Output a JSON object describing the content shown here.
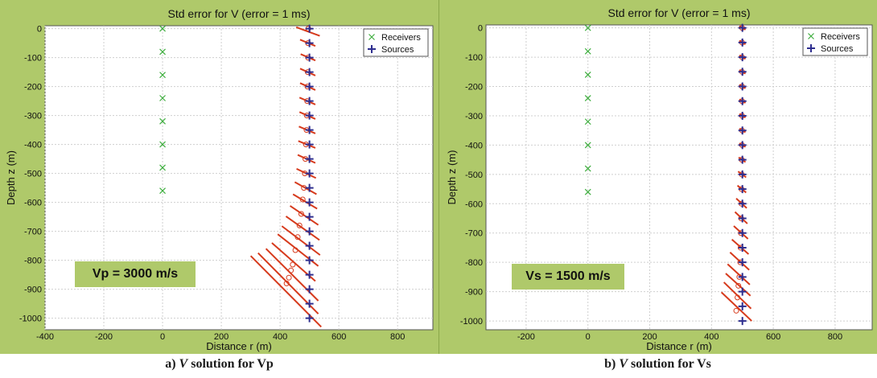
{
  "chart_data": [
    {
      "type": "scatter",
      "title": "Std error for V (error = 1 ms)",
      "xlabel": "Distance r (m)",
      "ylabel": "Depth z (m)",
      "xlim": [
        -400,
        920
      ],
      "ylim": [
        -1040,
        10
      ],
      "xticks": [
        -400,
        -200,
        0,
        200,
        400,
        600,
        800
      ],
      "yticks": [
        0,
        -100,
        -200,
        -300,
        -400,
        -500,
        -600,
        -700,
        -800,
        -900,
        -1000
      ],
      "grid": true,
      "legend_position": "top-right",
      "legend": [
        "Receivers",
        "Sources"
      ],
      "receivers": {
        "x": [
          0,
          0,
          0,
          0,
          0,
          0,
          0,
          0
        ],
        "z": [
          0,
          -80,
          -160,
          -240,
          -320,
          -400,
          -480,
          -560
        ]
      },
      "sources": {
        "x": 500,
        "z": [
          0,
          -50,
          -100,
          -150,
          -200,
          -250,
          -300,
          -350,
          -400,
          -450,
          -500,
          -550,
          -600,
          -650,
          -700,
          -750,
          -800,
          -850,
          -900,
          -950,
          -1000
        ]
      },
      "solutions": [
        {
          "x": 496,
          "z": 0
        },
        {
          "x": 495,
          "z": -50
        },
        {
          "x": 495,
          "z": -100
        },
        {
          "x": 494,
          "z": -150
        },
        {
          "x": 493,
          "z": -200
        },
        {
          "x": 492,
          "z": -250
        },
        {
          "x": 491,
          "z": -300
        },
        {
          "x": 490,
          "z": -350
        },
        {
          "x": 488,
          "z": -400
        },
        {
          "x": 486,
          "z": -450
        },
        {
          "x": 484,
          "z": -500
        },
        {
          "x": 481,
          "z": -550
        },
        {
          "x": 477,
          "z": -590
        },
        {
          "x": 472,
          "z": -640
        },
        {
          "x": 466,
          "z": -680
        },
        {
          "x": 460,
          "z": -720
        },
        {
          "x": 452,
          "z": -765
        },
        {
          "x": 443,
          "z": -815
        },
        {
          "x": 437,
          "z": -835
        },
        {
          "x": 430,
          "z": -860
        },
        {
          "x": 422,
          "z": -880
        }
      ],
      "error_bars": [
        {
          "x1": 455,
          "z1": 5,
          "x2": 535,
          "z2": -25
        },
        {
          "x1": 468,
          "z1": -38,
          "x2": 520,
          "z2": -60
        },
        {
          "x1": 470,
          "z1": -88,
          "x2": 520,
          "z2": -110
        },
        {
          "x1": 468,
          "z1": -138,
          "x2": 520,
          "z2": -162
        },
        {
          "x1": 468,
          "z1": -188,
          "x2": 520,
          "z2": -212
        },
        {
          "x1": 466,
          "z1": -238,
          "x2": 520,
          "z2": -262
        },
        {
          "x1": 466,
          "z1": -288,
          "x2": 520,
          "z2": -312
        },
        {
          "x1": 464,
          "z1": -338,
          "x2": 520,
          "z2": -362
        },
        {
          "x1": 462,
          "z1": -388,
          "x2": 520,
          "z2": -412
        },
        {
          "x1": 460,
          "z1": -436,
          "x2": 520,
          "z2": -464
        },
        {
          "x1": 456,
          "z1": -484,
          "x2": 522,
          "z2": -516
        },
        {
          "x1": 450,
          "z1": -530,
          "x2": 524,
          "z2": -572
        },
        {
          "x1": 444,
          "z1": -572,
          "x2": 526,
          "z2": -622
        },
        {
          "x1": 434,
          "z1": -612,
          "x2": 530,
          "z2": -678
        },
        {
          "x1": 420,
          "z1": -648,
          "x2": 534,
          "z2": -730
        },
        {
          "x1": 406,
          "z1": -682,
          "x2": 536,
          "z2": -782
        },
        {
          "x1": 392,
          "z1": -710,
          "x2": 530,
          "z2": -820
        },
        {
          "x1": 372,
          "z1": -740,
          "x2": 520,
          "z2": -872
        },
        {
          "x1": 352,
          "z1": -760,
          "x2": 530,
          "z2": -940
        },
        {
          "x1": 325,
          "z1": -775,
          "x2": 530,
          "z2": -985
        },
        {
          "x1": 300,
          "z1": -785,
          "x2": 540,
          "z2": -1030
        }
      ],
      "annotation": "Vp = 3000 m/s"
    },
    {
      "type": "scatter",
      "title": "Std error for V (error = 1 ms)",
      "xlabel": "Distance r (m)",
      "ylabel": "Depth z (m)",
      "xlim": [
        -330,
        920
      ],
      "ylim": [
        -1030,
        10
      ],
      "xticks": [
        -200,
        0,
        200,
        400,
        600,
        800
      ],
      "yticks": [
        0,
        -100,
        -200,
        -300,
        -400,
        -500,
        -600,
        -700,
        -800,
        -900,
        -1000
      ],
      "grid": true,
      "legend_position": "top-right",
      "legend": [
        "Receivers",
        "Sources"
      ],
      "receivers": {
        "x": [
          0,
          0,
          0,
          0,
          0,
          0,
          0,
          0
        ],
        "z": [
          0,
          -80,
          -160,
          -240,
          -320,
          -400,
          -480,
          -560
        ]
      },
      "sources": {
        "x": 500,
        "z": [
          0,
          -50,
          -100,
          -150,
          -200,
          -250,
          -300,
          -350,
          -400,
          -450,
          -500,
          -550,
          -600,
          -650,
          -700,
          -750,
          -800,
          -850,
          -900,
          -950,
          -1000
        ]
      },
      "solutions": [
        {
          "x": 499,
          "z": 0
        },
        {
          "x": 499,
          "z": -50
        },
        {
          "x": 499,
          "z": -100
        },
        {
          "x": 499,
          "z": -150
        },
        {
          "x": 499,
          "z": -200
        },
        {
          "x": 499,
          "z": -250
        },
        {
          "x": 499,
          "z": -300
        },
        {
          "x": 499,
          "z": -350
        },
        {
          "x": 499,
          "z": -400
        },
        {
          "x": 498,
          "z": -450
        },
        {
          "x": 498,
          "z": -500
        },
        {
          "x": 497,
          "z": -550
        },
        {
          "x": 497,
          "z": -600
        },
        {
          "x": 496,
          "z": -650
        },
        {
          "x": 495,
          "z": -700
        },
        {
          "x": 494,
          "z": -750
        },
        {
          "x": 493,
          "z": -800
        },
        {
          "x": 490,
          "z": -850
        },
        {
          "x": 487,
          "z": -880
        },
        {
          "x": 484,
          "z": -920
        },
        {
          "x": 480,
          "z": -965
        }
      ],
      "error_bars": [
        {
          "x1": 490,
          "z1": 6,
          "x2": 510,
          "z2": -6
        },
        {
          "x1": 490,
          "z1": -44,
          "x2": 510,
          "z2": -56
        },
        {
          "x1": 490,
          "z1": -94,
          "x2": 510,
          "z2": -106
        },
        {
          "x1": 490,
          "z1": -144,
          "x2": 510,
          "z2": -156
        },
        {
          "x1": 490,
          "z1": -194,
          "x2": 510,
          "z2": -206
        },
        {
          "x1": 490,
          "z1": -244,
          "x2": 510,
          "z2": -256
        },
        {
          "x1": 490,
          "z1": -294,
          "x2": 510,
          "z2": -306
        },
        {
          "x1": 490,
          "z1": -344,
          "x2": 510,
          "z2": -356
        },
        {
          "x1": 490,
          "z1": -394,
          "x2": 510,
          "z2": -406
        },
        {
          "x1": 488,
          "z1": -442,
          "x2": 510,
          "z2": -458
        },
        {
          "x1": 486,
          "z1": -490,
          "x2": 512,
          "z2": -510
        },
        {
          "x1": 484,
          "z1": -538,
          "x2": 512,
          "z2": -562
        },
        {
          "x1": 480,
          "z1": -582,
          "x2": 514,
          "z2": -615
        },
        {
          "x1": 476,
          "z1": -628,
          "x2": 516,
          "z2": -668
        },
        {
          "x1": 472,
          "z1": -676,
          "x2": 518,
          "z2": -720
        },
        {
          "x1": 466,
          "z1": -722,
          "x2": 520,
          "z2": -772
        },
        {
          "x1": 460,
          "z1": -766,
          "x2": 522,
          "z2": -826
        },
        {
          "x1": 452,
          "z1": -806,
          "x2": 524,
          "z2": -876
        },
        {
          "x1": 446,
          "z1": -838,
          "x2": 526,
          "z2": -914
        },
        {
          "x1": 440,
          "z1": -868,
          "x2": 528,
          "z2": -958
        },
        {
          "x1": 432,
          "z1": -902,
          "x2": 530,
          "z2": -1000
        }
      ],
      "annotation": "Vs = 1500 m/s"
    }
  ],
  "captions": {
    "a_prefix": "a) ",
    "a_italic": "V",
    "a_rest": " solution for Vp",
    "b_prefix": "b) ",
    "b_italic": "V",
    "b_rest": " solution for Vs"
  },
  "colors": {
    "panel_bg": "#afc96a",
    "plot_bg": "#ffffff",
    "grid": "#cfcfcf",
    "receivers": "#3fae3f",
    "sources": "#2e2e8f",
    "error_bars": "#d63a1c",
    "solutions": "#d63a1c"
  }
}
